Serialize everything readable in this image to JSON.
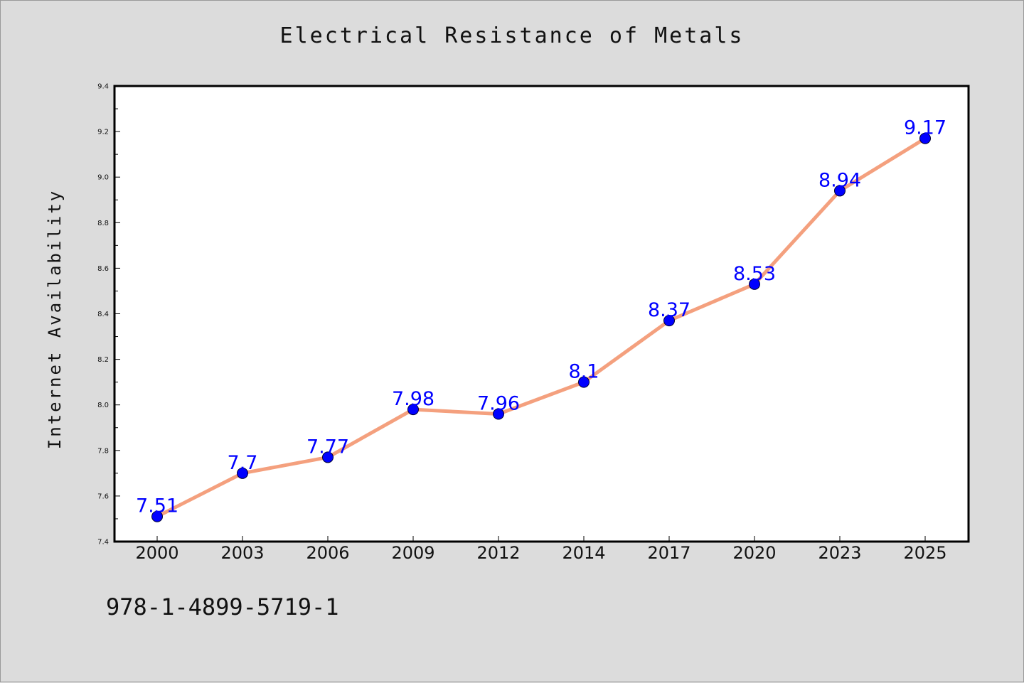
{
  "chart_data": {
    "type": "line",
    "title": "Electrical Resistance of Metals",
    "ylabel": "Internet Availability",
    "categories": [
      "2000",
      "2003",
      "2006",
      "2009",
      "2012",
      "2014",
      "2017",
      "2020",
      "2023",
      "2025"
    ],
    "series": [
      {
        "values": [
          7.51,
          7.7,
          7.77,
          7.98,
          7.96,
          8.1,
          8.37,
          8.53,
          8.94,
          9.17
        ]
      }
    ],
    "data_labels": [
      "7.51",
      "7.7",
      "7.77",
      "7.98",
      "7.96",
      "8.1",
      "8.37",
      "8.53",
      "8.94",
      "9.17"
    ],
    "ylim": [
      7.4,
      9.4
    ],
    "yticks": [
      "7.4",
      "7.6",
      "7.8",
      "8.0",
      "8.2",
      "8.4",
      "8.6",
      "8.8",
      "9.0",
      "9.2",
      "9.4"
    ],
    "grid": false,
    "colors": {
      "line": "#f4a07e",
      "marker": "#0000ff",
      "label": "#0000ff",
      "frame": "#000000",
      "plot_bg": "#ffffff",
      "figure_bg": "#dcdcdc"
    }
  },
  "footer_text": "978-1-4899-5719-1"
}
